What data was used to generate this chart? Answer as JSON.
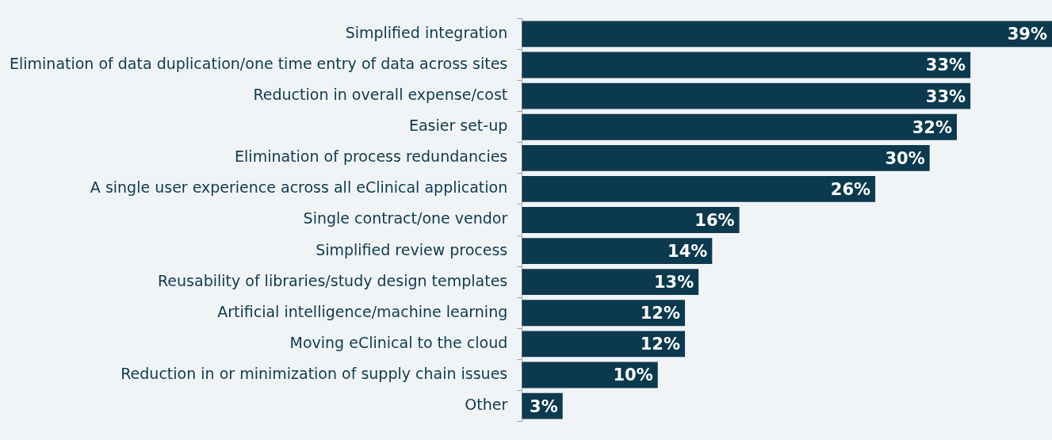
{
  "chart_data": {
    "type": "bar",
    "orientation": "horizontal",
    "relative": false,
    "categories": [
      "Simplified integration",
      "Elimination of data duplication/one time entry of data across sites",
      "Reduction in overall expense/cost",
      "Easier set-up",
      "Elimination of process redundancies",
      "A single user experience across all eClinical application",
      "Single contract/one vendor",
      "Simplified review process",
      "Reusability of libraries/study design templates",
      "Artificial intelligence/machine learning",
      "Moving eClinical to the cloud",
      "Reduction in or minimization of supply chain issues",
      "Other"
    ],
    "values": [
      39,
      33,
      33,
      32,
      30,
      26,
      16,
      14,
      13,
      12,
      12,
      10,
      3
    ],
    "value_labels": [
      "39%",
      "33%",
      "33%",
      "32%",
      "30%",
      "26%",
      "16%",
      "14%",
      "13%",
      "12%",
      "12%",
      "10%",
      "3%"
    ],
    "color": "#0b3a4f",
    "grid": false,
    "legend": false,
    "tick_labels": "y"
  }
}
